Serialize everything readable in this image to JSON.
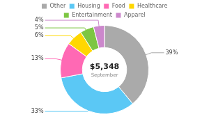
{
  "chart_data": {
    "type": "doughnut",
    "categories": [
      "Other",
      "Housing",
      "Food",
      "Healthcare",
      "Entertainment",
      "Apparel"
    ],
    "values": [
      39,
      33,
      13,
      6,
      5,
      4
    ],
    "value_labels": [
      "39%",
      "33%",
      "13%",
      "6%",
      "5%",
      "4%"
    ],
    "colors": [
      "#AAAAAA",
      "#5BC8F5",
      "#FF69B4",
      "#FFD700",
      "#7DC642",
      "#CC88CC"
    ],
    "annotations": [
      "$5,348",
      "September"
    ],
    "data_labels": true,
    "legend": "top"
  }
}
